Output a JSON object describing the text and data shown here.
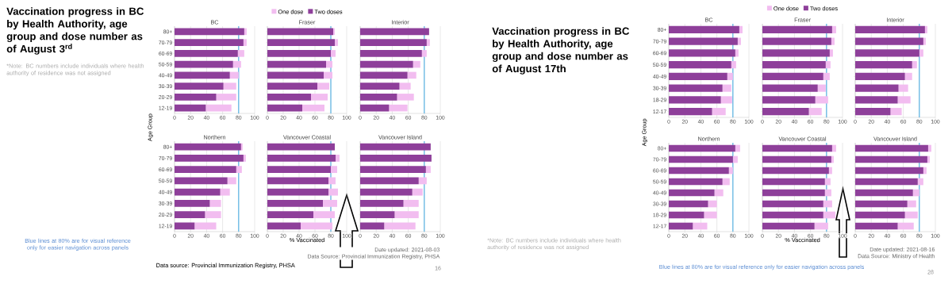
{
  "chart_data": [
    {
      "type": "other",
      "title": "Vaccination progress in BC by Health Authority, age group and dose number as of August 3$^{rd}$",
      "subtitle": "*Note: BC numbers include individuals where health authority of residence was not assigned",
      "annotations": [
        "Blue lines at 80% are for visual reference only for easier navigation across panels",
        "Data source: Provincial Immunization Registry, PHSA",
        "16"
      ]
    },
    {
      "type": "bar",
      "orientation": "horizontal",
      "stacked": true,
      "title": "BC",
      "ylabel": "Age Group",
      "categories": [
        "80+",
        "70-79",
        "60-69",
        "50-59",
        "40-49",
        "30-39",
        "20-29",
        "12-19"
      ],
      "xlim": [
        0,
        100
      ],
      "xticks": [
        0,
        20,
        40,
        60,
        80,
        100
      ],
      "grid": "x",
      "series": [
        {
          "color": "#8e3f9a",
          "values": [
            87,
            86,
            79,
            73,
            69,
            61,
            52,
            39
          ]
        },
        {
          "color": "#f2bdf0",
          "values": [
            3,
            4,
            8,
            10,
            11,
            16,
            25,
            32
          ]
        }
      ],
      "ref_lines": [
        {
          "axis": "x",
          "value": 80,
          "color": "#5ab4e5"
        }
      ]
    },
    {
      "type": "bar",
      "orientation": "horizontal",
      "stacked": true,
      "title": "Fraser",
      "categories": [
        null,
        null,
        null,
        null,
        null,
        null,
        null,
        null
      ],
      "xlim": [
        0,
        100
      ],
      "xticks": [
        0,
        20,
        40,
        60,
        80,
        100
      ],
      "grid": "x",
      "tick_labels": "x",
      "legend": "top",
      "series": [
        {
          "name": "Two doses",
          "color": "#8e3f9a",
          "values": [
            83,
            85,
            80,
            74,
            71,
            63,
            55,
            44
          ]
        },
        {
          "name": "One dose",
          "color": "#f2bdf0",
          "values": [
            2,
            4,
            6,
            8,
            11,
            15,
            21,
            28
          ]
        }
      ],
      "ref_lines": [
        {
          "axis": "x",
          "value": 80,
          "color": "#5ab4e5"
        }
      ]
    },
    {
      "type": "bar",
      "orientation": "horizontal",
      "stacked": true,
      "title": "Interior",
      "categories": [
        null,
        null,
        null,
        null,
        null,
        null,
        null,
        null
      ],
      "xlim": [
        0,
        100
      ],
      "xticks": [
        0,
        20,
        40,
        60,
        80,
        100
      ],
      "grid": "x",
      "tick_labels": "x",
      "series": [
        {
          "color": "#8e3f9a",
          "values": [
            86,
            83,
            77,
            66,
            59,
            49,
            46,
            36
          ]
        },
        {
          "color": "#f2bdf0",
          "values": [
            null,
            4,
            6,
            9,
            11,
            14,
            21,
            23
          ]
        }
      ],
      "ref_lines": [
        {
          "axis": "x",
          "value": 80,
          "color": "#5ab4e5"
        }
      ]
    },
    {
      "type": "bar",
      "orientation": "horizontal",
      "stacked": true,
      "title": "Northern",
      "categories": [
        "80+",
        "70-79",
        "60-69",
        "50-59",
        "40-49",
        "30-39",
        "20-29",
        "12-19"
      ],
      "xlim": [
        0,
        100
      ],
      "xticks": [
        0,
        20,
        40,
        60,
        80,
        100
      ],
      "grid": "x",
      "series": [
        {
          "color": "#8e3f9a",
          "values": [
            83,
            86,
            77,
            66,
            57,
            44,
            38,
            25
          ]
        },
        {
          "color": "#f2bdf0",
          "values": [
            2,
            3,
            7,
            11,
            12,
            14,
            20,
            27
          ]
        }
      ],
      "ref_lines": [
        {
          "axis": "x",
          "value": 80,
          "color": "#5ab4e5"
        }
      ]
    },
    {
      "type": "bar",
      "orientation": "horizontal",
      "stacked": true,
      "title": "Vancouver Coastal",
      "xlabel": "% Vaccinated",
      "categories": [
        null,
        null,
        null,
        null,
        null,
        null,
        null,
        null
      ],
      "xlim": [
        0,
        100
      ],
      "xticks": [
        0,
        20,
        40,
        60,
        80,
        100
      ],
      "grid": "x",
      "tick_labels": "x",
      "series": [
        {
          "color": "#8e3f9a",
          "values": [
            85,
            86,
            80,
            77,
            77,
            70,
            58,
            42
          ]
        },
        {
          "color": "#f2bdf0",
          "values": [
            null,
            5,
            8,
            9,
            12,
            18,
            27,
            40
          ]
        }
      ],
      "ref_lines": [
        {
          "axis": "x",
          "value": 80,
          "color": "#5ab4e5"
        }
      ]
    },
    {
      "type": "bar",
      "orientation": "horizontal",
      "stacked": true,
      "title": "Vancouver Island",
      "categories": [
        null,
        null,
        null,
        null,
        null,
        null,
        null,
        null
      ],
      "xlim": [
        0,
        100
      ],
      "xticks": [
        0,
        20,
        40,
        60,
        80,
        100
      ],
      "grid": "x",
      "tick_labels": "x",
      "series": [
        {
          "color": "#8e3f9a",
          "values": [
            88,
            89,
            82,
            73,
            65,
            54,
            43,
            30
          ]
        },
        {
          "color": "#f2bdf0",
          "values": [
            null,
            null,
            6,
            10,
            13,
            19,
            30,
            39
          ]
        }
      ],
      "ref_lines": [
        {
          "axis": "x",
          "value": 80,
          "color": "#5ab4e5"
        }
      ],
      "annotations": [
        "Date updated: 2021-08-03",
        "Data Source: Provincial Immunization Registry, PHSA"
      ]
    },
    {
      "type": "other",
      "title": "Vaccination progress in BC by Health Authority, age group and dose number as of August 17th",
      "subtitle": "*Note: BC numbers include individuals where health authority of residence was not assigned",
      "annotations": [
        "Blue lines at 80% are for visual reference only for easier navigation across panels",
        "28"
      ]
    },
    {
      "type": "bar",
      "orientation": "horizontal",
      "stacked": true,
      "title": "BC",
      "ylabel": "Age Group",
      "categories": [
        "80+",
        "70-79",
        "60-69",
        "50-59",
        "40-49",
        "30-39",
        "18-29",
        "12-17"
      ],
      "xlim": [
        0,
        100
      ],
      "xticks": [
        0,
        20,
        40,
        60,
        80,
        100
      ],
      "grid": "x",
      "series": [
        {
          "color": "#8e3f9a",
          "values": [
            88,
            86,
            83,
            78,
            73,
            67,
            65,
            54
          ]
        },
        {
          "color": "#f2bdf0",
          "values": [
            4,
            4,
            4,
            6,
            7,
            11,
            14,
            17
          ]
        }
      ],
      "ref_lines": [
        {
          "axis": "x",
          "value": 80,
          "color": "#5ab4e5"
        }
      ]
    },
    {
      "type": "bar",
      "orientation": "horizontal",
      "stacked": true,
      "title": "Fraser",
      "categories": [
        null,
        null,
        null,
        null,
        null,
        null,
        null,
        null
      ],
      "xlim": [
        0,
        100
      ],
      "xticks": [
        0,
        20,
        40,
        60,
        80,
        100
      ],
      "grid": "x",
      "tick_labels": "x",
      "legend": "top",
      "series": [
        {
          "name": "Two doses",
          "color": "#8e3f9a",
          "values": [
            87,
            86,
            84,
            79,
            76,
            69,
            66,
            58
          ]
        },
        {
          "name": "One dose",
          "color": "#f2bdf0",
          "values": [
            5,
            4,
            4,
            6,
            8,
            10,
            16,
            16
          ]
        }
      ],
      "ref_lines": [
        {
          "axis": "x",
          "value": 80,
          "color": "#5ab4e5"
        }
      ]
    },
    {
      "type": "bar",
      "orientation": "horizontal",
      "stacked": true,
      "title": "Interior",
      "categories": [
        null,
        null,
        null,
        null,
        null,
        null,
        null,
        null
      ],
      "xlim": [
        0,
        100
      ],
      "xticks": [
        0,
        20,
        40,
        60,
        80,
        100
      ],
      "grid": "x",
      "tick_labels": "x",
      "series": [
        {
          "color": "#8e3f9a",
          "values": [
            87,
            85,
            80,
            71,
            62,
            54,
            53,
            44
          ]
        },
        {
          "color": "#f2bdf0",
          "values": [
            3,
            3,
            5,
            6,
            9,
            12,
            16,
            14
          ]
        }
      ],
      "ref_lines": [
        {
          "axis": "x",
          "value": 80,
          "color": "#5ab4e5"
        }
      ]
    },
    {
      "type": "bar",
      "orientation": "horizontal",
      "stacked": true,
      "title": "Northern",
      "categories": [
        "80+",
        "70-79",
        "60-69",
        "50-59",
        "40-49",
        "30-39",
        "18-29",
        "12-17"
      ],
      "xlim": [
        0,
        100
      ],
      "xticks": [
        0,
        20,
        40,
        60,
        80,
        100
      ],
      "grid": "x",
      "series": [
        {
          "color": "#8e3f9a",
          "values": [
            83,
            80,
            75,
            67,
            57,
            49,
            44,
            30
          ]
        },
        {
          "color": "#f2bdf0",
          "values": [
            6,
            6,
            5,
            9,
            11,
            11,
            16,
            18
          ]
        }
      ],
      "ref_lines": [
        {
          "axis": "x",
          "value": 80,
          "color": "#5ab4e5"
        }
      ]
    },
    {
      "type": "bar",
      "orientation": "horizontal",
      "stacked": true,
      "title": "Vancouver Coastal",
      "xlabel": "% Vaccinated",
      "categories": [
        null,
        null,
        null,
        null,
        null,
        null,
        null,
        null
      ],
      "xlim": [
        0,
        100
      ],
      "xticks": [
        0,
        20,
        40,
        60,
        80,
        100
      ],
      "grid": "x",
      "tick_labels": "x",
      "series": [
        {
          "color": "#8e3f9a",
          "values": [
            87,
            86,
            83,
            78,
            78,
            76,
            76,
            65
          ]
        },
        {
          "color": "#f2bdf0",
          "values": [
            5,
            3,
            4,
            7,
            8,
            11,
            15,
            17
          ]
        }
      ],
      "ref_lines": [
        {
          "axis": "x",
          "value": 80,
          "color": "#5ab4e5"
        }
      ]
    },
    {
      "type": "bar",
      "orientation": "horizontal",
      "stacked": true,
      "title": "Vancouver Island",
      "categories": [
        null,
        null,
        null,
        null,
        null,
        null,
        null,
        null
      ],
      "xlim": [
        0,
        100
      ],
      "xticks": [
        0,
        20,
        40,
        60,
        80,
        100
      ],
      "grid": "x",
      "tick_labels": "x",
      "series": [
        {
          "color": "#8e3f9a",
          "values": [
            91,
            90,
            85,
            78,
            72,
            65,
            62,
            53
          ]
        },
        {
          "color": "#f2bdf0",
          "values": [
            4,
            3,
            4,
            7,
            8,
            11,
            16,
            20
          ]
        }
      ],
      "ref_lines": [
        {
          "axis": "x",
          "value": 80,
          "color": "#5ab4e5"
        }
      ],
      "annotations": [
        "Date updated: 2021-08-16",
        "Data Source: Ministry of Health"
      ]
    }
  ]
}
